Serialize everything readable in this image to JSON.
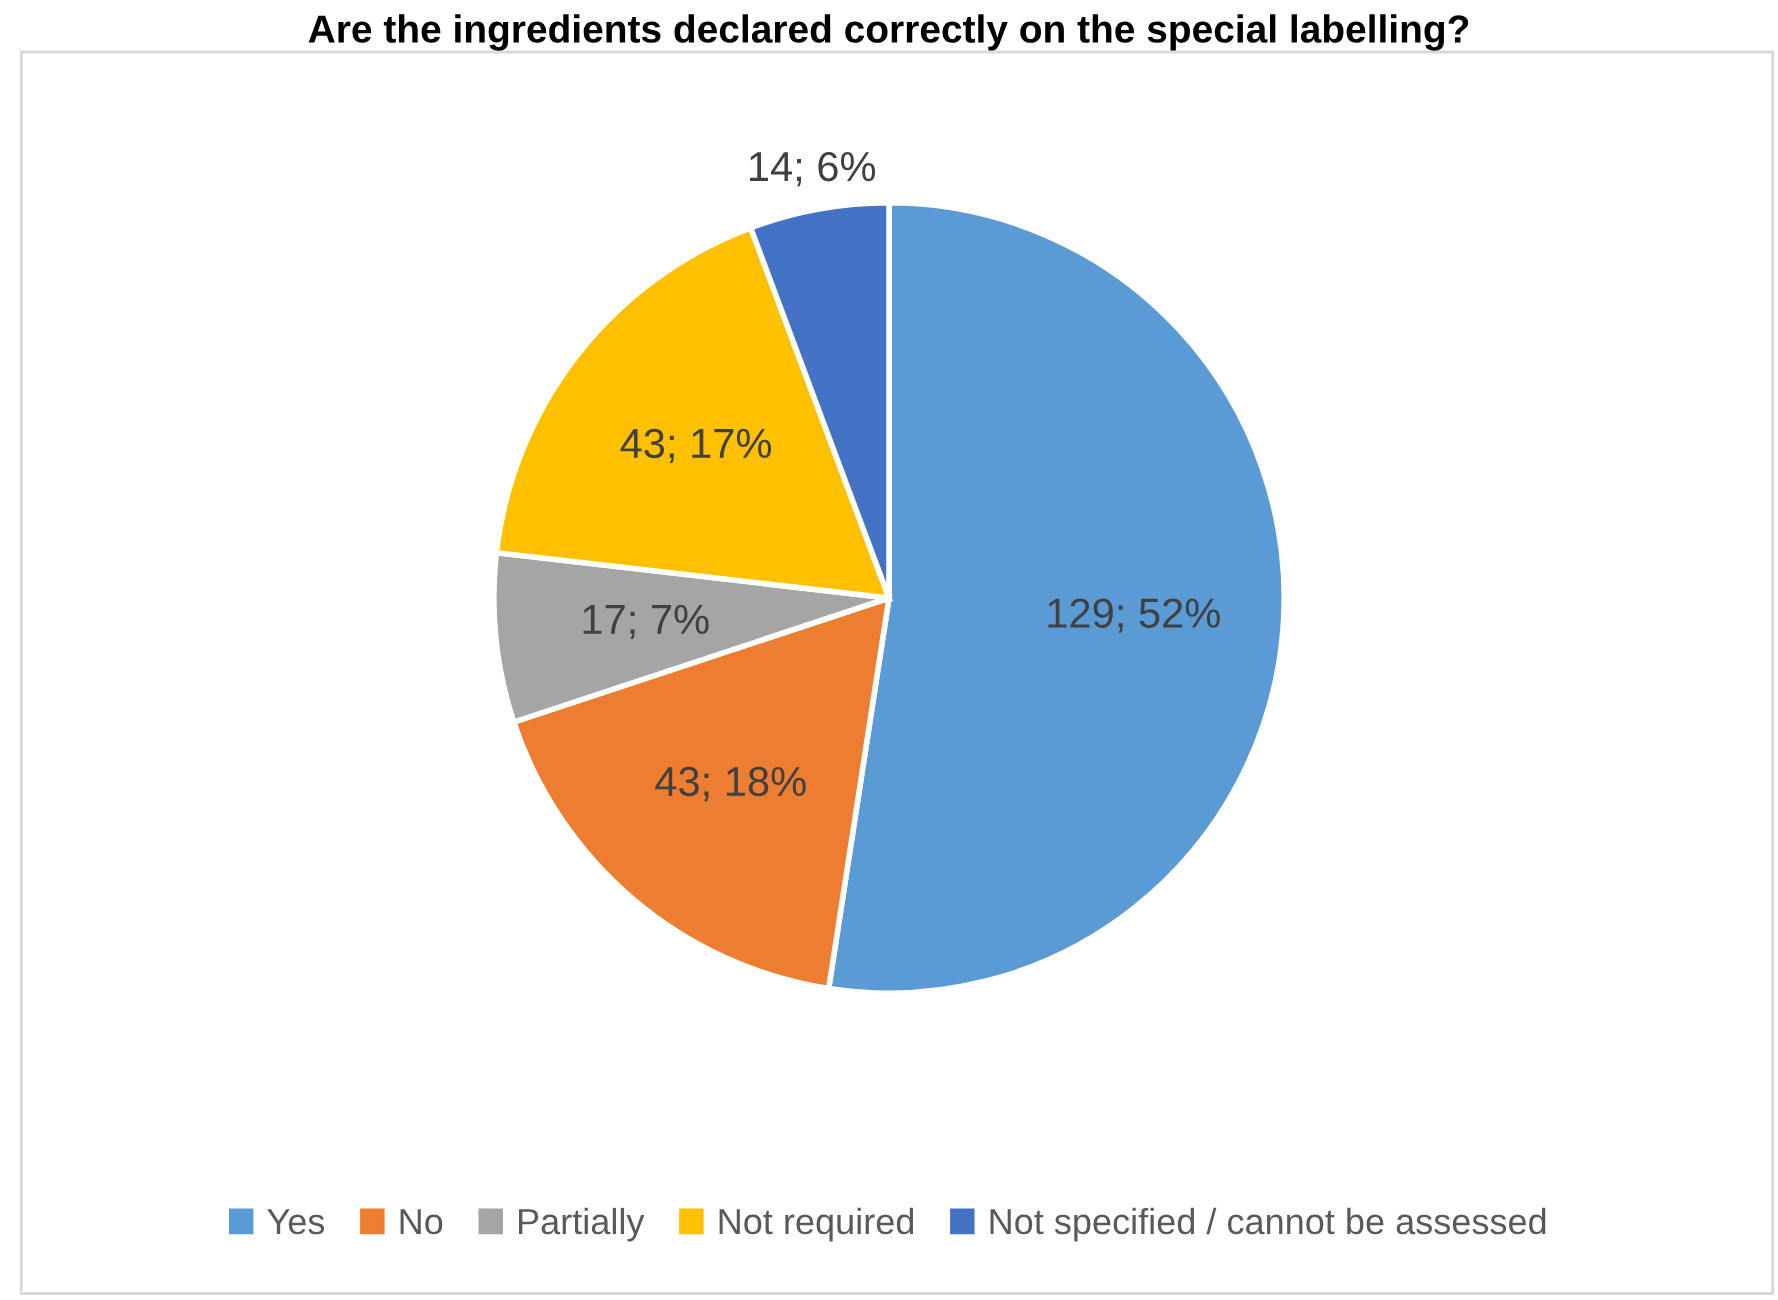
{
  "chart_data": {
    "type": "pie",
    "title": "Are the ingredients declared correctly on the special labelling?",
    "categories": [
      "Yes",
      "No",
      "Partially",
      "Not required",
      "Not specified / cannot be assessed"
    ],
    "values": [
      129,
      43,
      17,
      43,
      14
    ],
    "colors": [
      "#5b9bd5",
      "#ed7d31",
      "#a5a5a5",
      "#ffc000",
      "#4472c4"
    ],
    "value_labels": [
      "129; 52%",
      "43; 18%",
      "17; 7%",
      "43; 17%",
      "14; 6%"
    ],
    "legend": "bottom"
  }
}
